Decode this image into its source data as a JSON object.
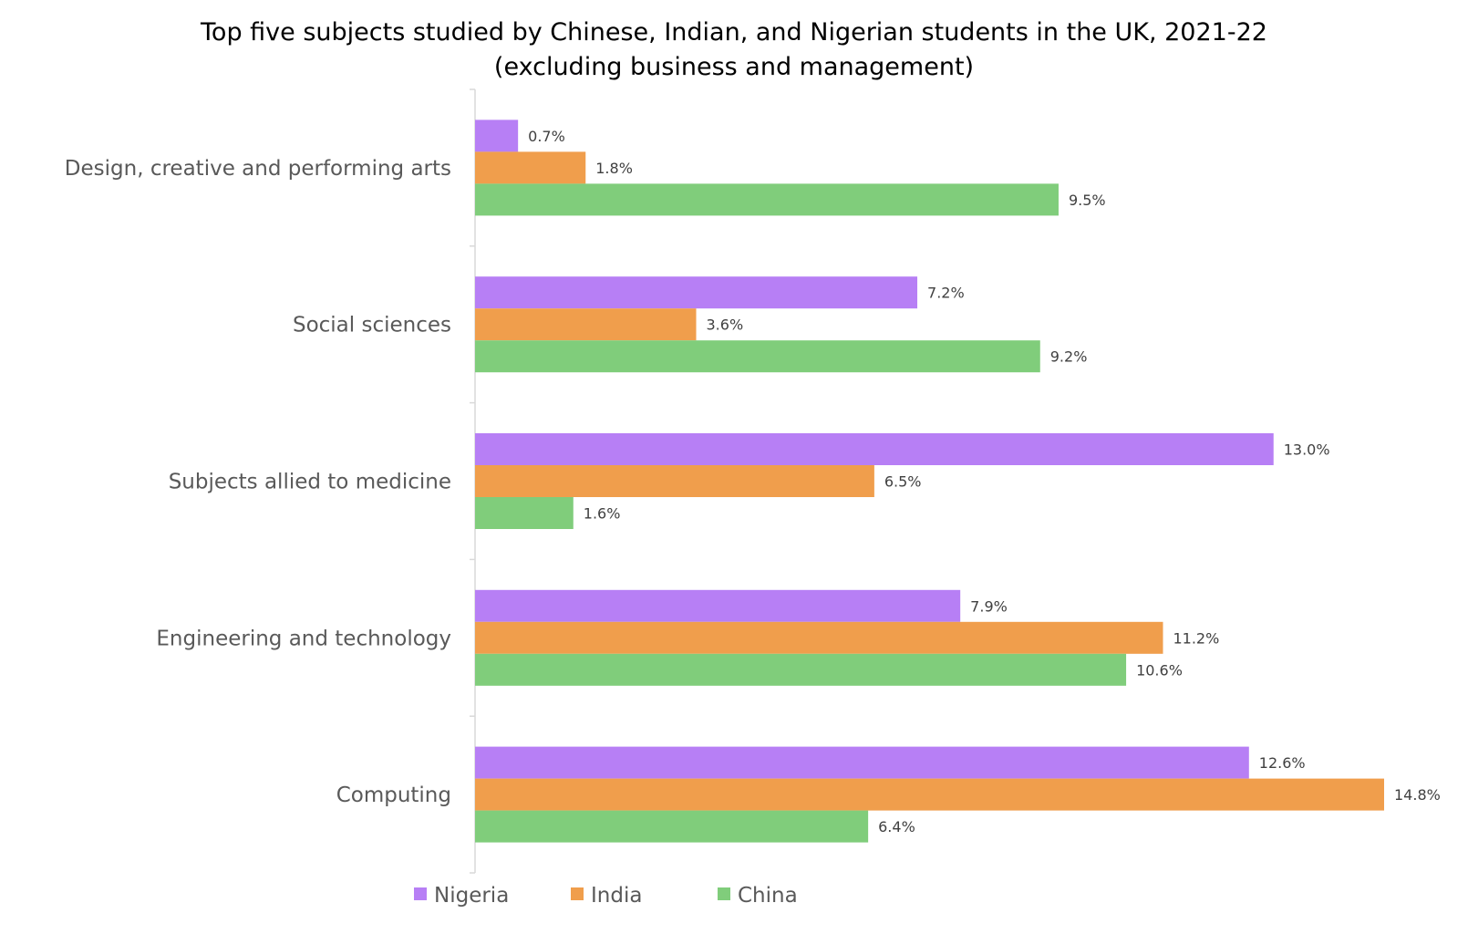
{
  "chart_data": {
    "type": "bar",
    "orientation": "horizontal",
    "title": "Top five subjects studied by Chinese, Indian, and Nigerian students in the UK, 2021-22",
    "subtitle": "(excluding business and management)",
    "categories": [
      "Design, creative and performing arts",
      "Social sciences",
      "Subjects allied to medicine",
      "Engineering and technology",
      "Computing"
    ],
    "series": [
      {
        "name": "Nigeria",
        "color": "#b77ff5",
        "values": [
          0.7,
          7.2,
          13.0,
          7.9,
          12.6
        ],
        "labels": [
          "0.7%",
          "7.2%",
          "13.0%",
          "7.9%",
          "12.6%"
        ]
      },
      {
        "name": "India",
        "color": "#f09e4c",
        "values": [
          1.8,
          3.6,
          6.5,
          11.2,
          14.8
        ],
        "labels": [
          "1.8%",
          "3.6%",
          "6.5%",
          "11.2%",
          "14.8%"
        ]
      },
      {
        "name": "China",
        "color": "#80cd7b",
        "values": [
          9.5,
          9.2,
          1.6,
          10.6,
          6.4
        ],
        "labels": [
          "9.5%",
          "9.2%",
          "1.6%",
          "10.6%",
          "6.4%"
        ]
      }
    ],
    "xlim": [
      0,
      14.8
    ],
    "legend": "bottom",
    "grid": false
  }
}
